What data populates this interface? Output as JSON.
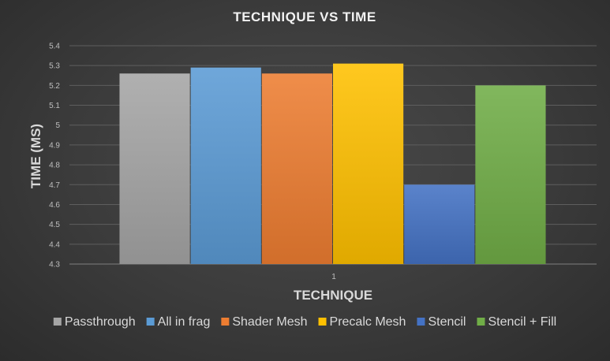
{
  "chart_data": {
    "type": "bar",
    "title": "TECHNIQUE VS TIME",
    "xlabel": "TECHNIQUE",
    "ylabel": "TIME (MS)",
    "categories": [
      "1"
    ],
    "ylim": [
      4.3,
      5.4
    ],
    "yticks": [
      "4.3",
      "4.4",
      "4.5",
      "4.6",
      "4.7",
      "4.8",
      "4.9",
      "5",
      "5.1",
      "5.2",
      "5.3",
      "5.4"
    ],
    "grid": true,
    "legend_position": "bottom",
    "series": [
      {
        "name": "Passthrough",
        "values": [
          5.26
        ],
        "color": "#a5a5a5"
      },
      {
        "name": "All in frag",
        "values": [
          5.29
        ],
        "color": "#5b9bd5"
      },
      {
        "name": "Shader Mesh",
        "values": [
          5.26
        ],
        "color": "#ed7d31"
      },
      {
        "name": "Precalc Mesh",
        "values": [
          5.31
        ],
        "color": "#ffc000"
      },
      {
        "name": "Stencil",
        "values": [
          4.7
        ],
        "color": "#4472c4"
      },
      {
        "name": "Stencil + Fill",
        "values": [
          5.2
        ],
        "color": "#70ad47"
      }
    ]
  }
}
